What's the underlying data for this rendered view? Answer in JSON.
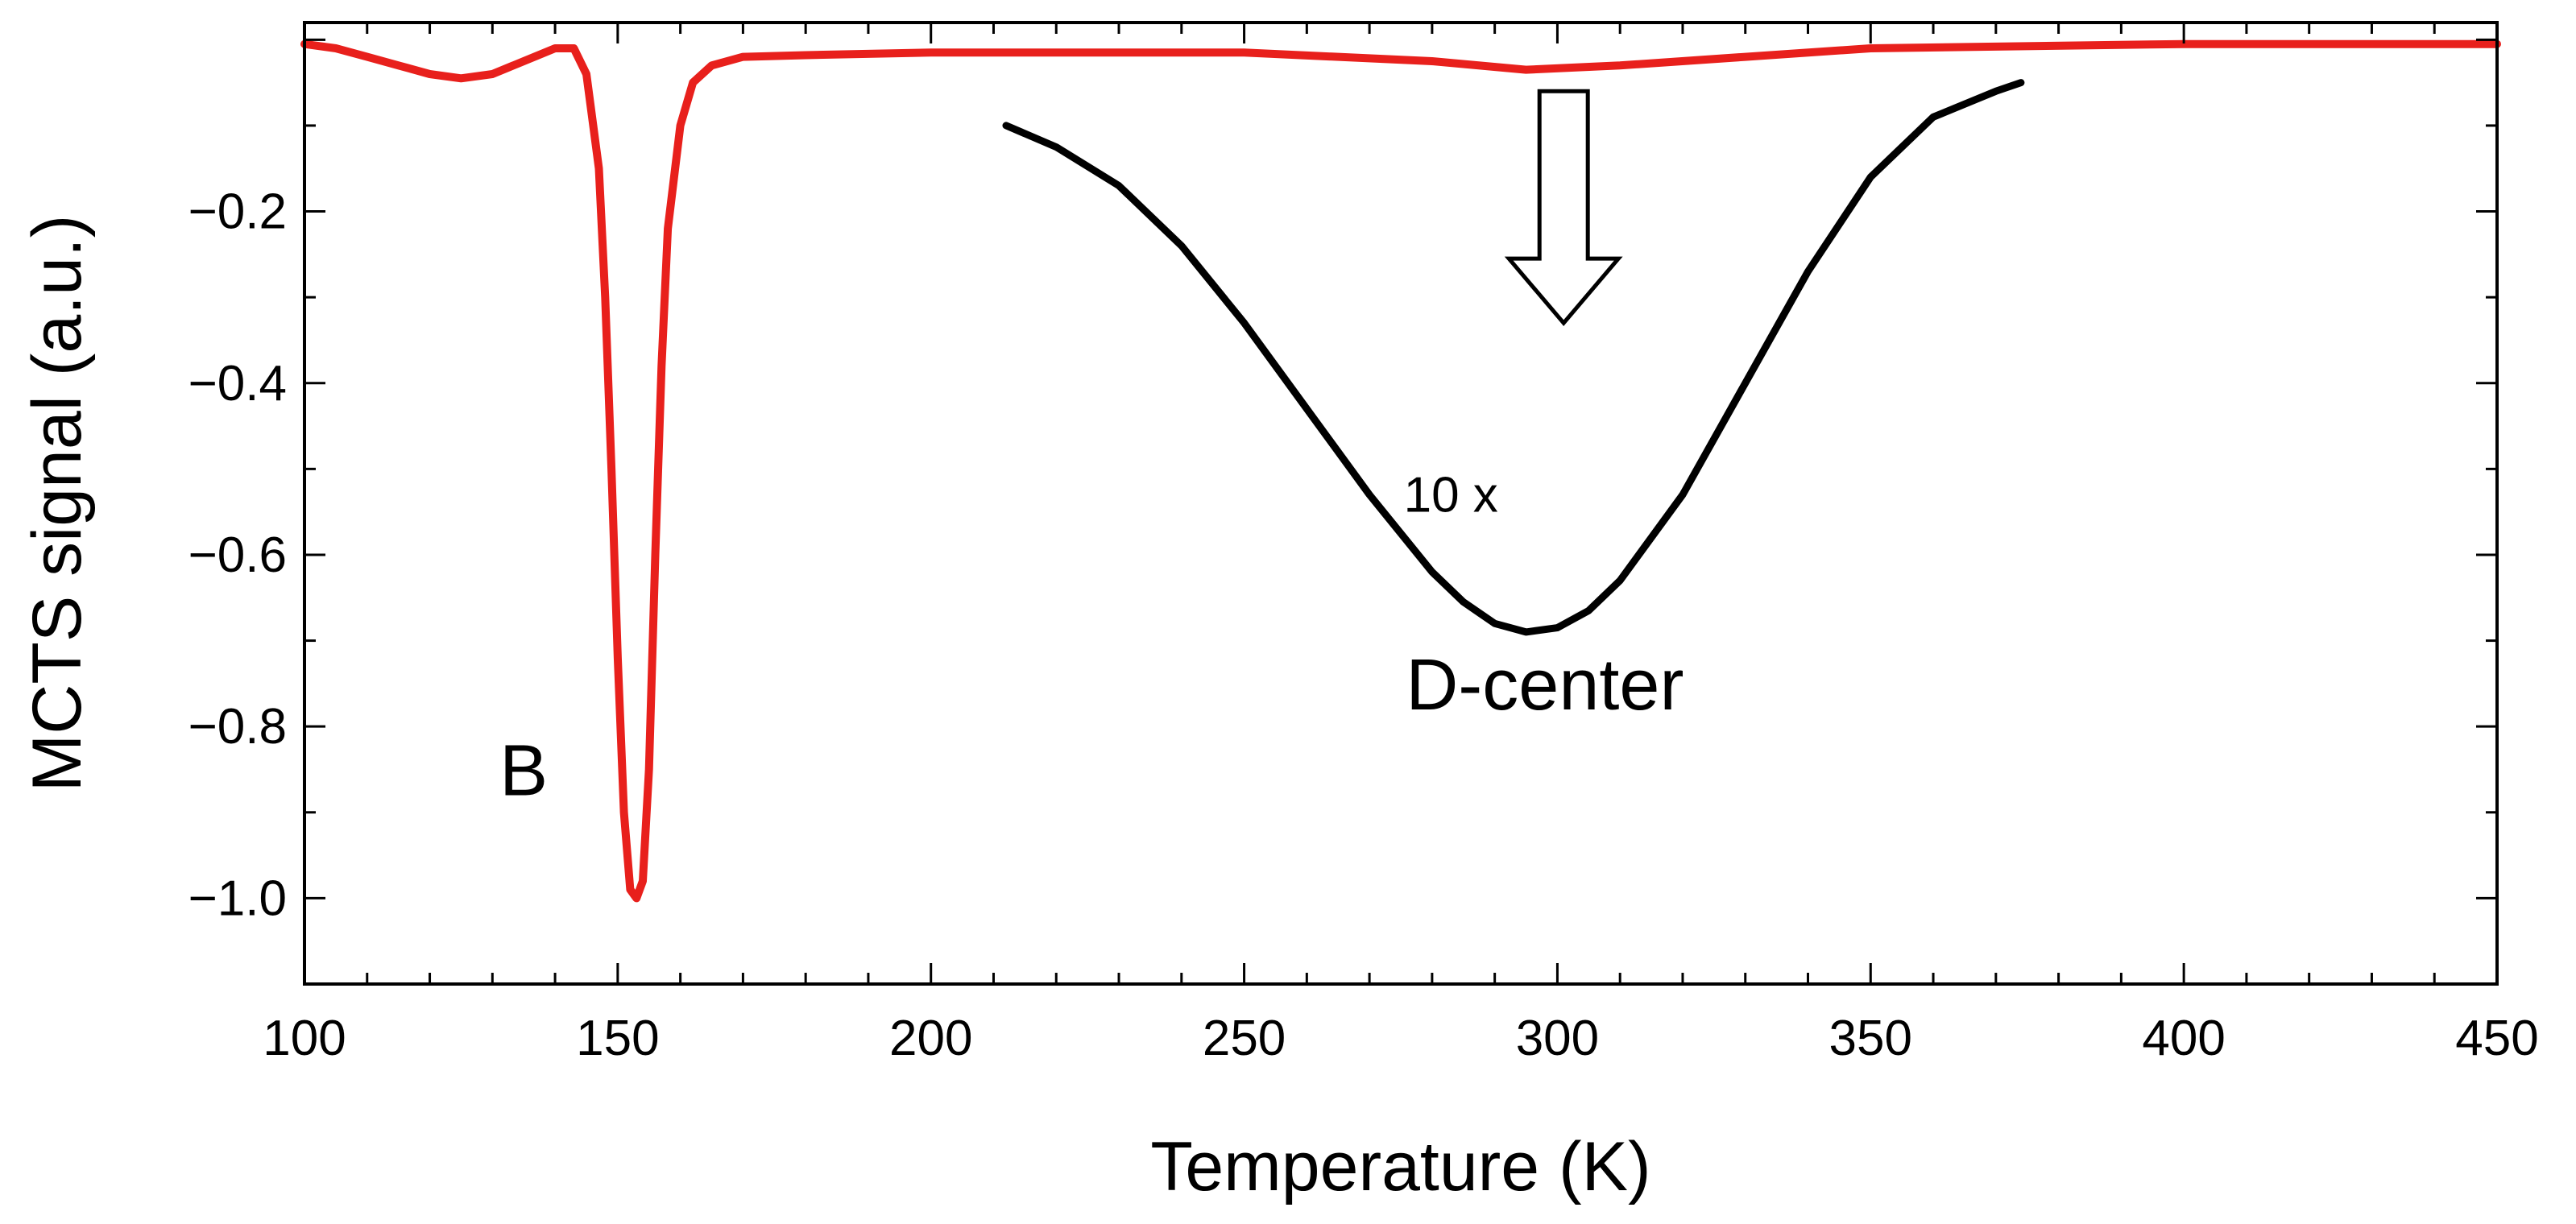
{
  "chart_data": {
    "type": "line",
    "title": "",
    "xlabel": "Temperature (K)",
    "ylabel": "MCTS signal (a.u.)",
    "xlim": [
      100,
      450
    ],
    "ylim": [
      -1.1,
      0.02
    ],
    "x_ticks": [
      100,
      150,
      200,
      250,
      300,
      350,
      400,
      450
    ],
    "x_tick_labels": [
      "100",
      "150",
      "200",
      "250",
      "300",
      "350",
      "400",
      "450"
    ],
    "y_ticks": [
      -0.2,
      -0.4,
      -0.6,
      -0.8,
      -1.0
    ],
    "y_tick_labels": [
      "-0.2",
      "-0.4",
      "-0.6",
      "-0.8",
      "-1.0"
    ],
    "grid": false,
    "legend": "none",
    "series": [
      {
        "color": "#e8201c",
        "x": [
          100,
          105,
          110,
          115,
          120,
          125,
          130,
          135,
          140,
          143,
          145,
          147,
          148,
          149,
          150,
          151,
          152,
          153,
          154,
          155,
          156,
          157,
          158,
          160,
          162,
          165,
          170,
          180,
          200,
          250,
          280,
          295,
          310,
          330,
          350,
          400,
          450
        ],
        "y": [
          -0.005,
          -0.01,
          -0.02,
          -0.03,
          -0.04,
          -0.045,
          -0.04,
          -0.025,
          -0.01,
          -0.01,
          -0.04,
          -0.15,
          -0.3,
          -0.5,
          -0.72,
          -0.9,
          -0.99,
          -1.0,
          -0.98,
          -0.85,
          -0.6,
          -0.38,
          -0.22,
          -0.1,
          -0.05,
          -0.03,
          -0.02,
          -0.018,
          -0.015,
          -0.015,
          -0.025,
          -0.035,
          -0.03,
          -0.02,
          -0.01,
          -0.005,
          -0.005
        ]
      },
      {
        "color": "#000000",
        "x": [
          212,
          220,
          230,
          240,
          250,
          260,
          270,
          280,
          285,
          290,
          295,
          300,
          305,
          310,
          320,
          330,
          340,
          350,
          360,
          370,
          374
        ],
        "y": [
          -0.1,
          -0.125,
          -0.17,
          -0.24,
          -0.33,
          -0.43,
          -0.53,
          -0.62,
          -0.655,
          -0.68,
          -0.69,
          -0.685,
          -0.665,
          -0.63,
          -0.53,
          -0.4,
          -0.27,
          -0.16,
          -0.09,
          -0.06,
          -0.05
        ]
      }
    ],
    "annotations": [
      {
        "text": "B",
        "x": 135,
        "y": -0.88,
        "size": "large"
      },
      {
        "text": "D-center",
        "x": 298,
        "y": -0.78,
        "size": "large"
      },
      {
        "text": "10 x",
        "x": 283,
        "y": -0.55,
        "size": "medium"
      },
      {
        "type": "arrow",
        "x": 301,
        "y_from": -0.06,
        "y_to": -0.33
      }
    ]
  }
}
